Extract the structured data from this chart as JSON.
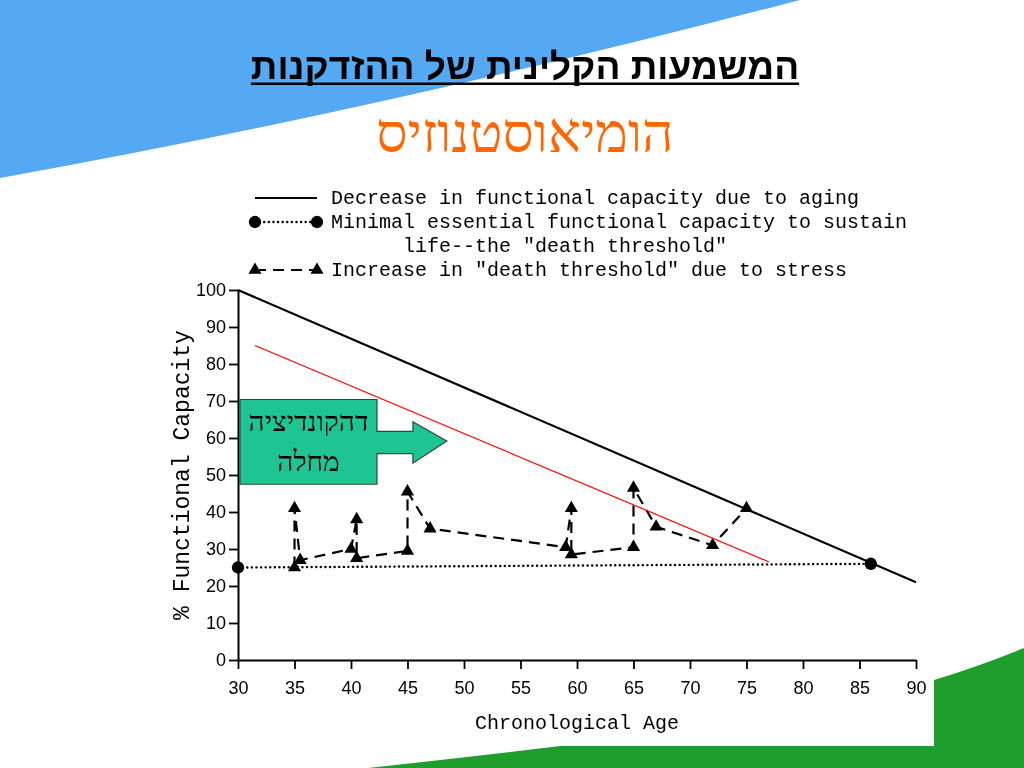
{
  "chart_data": {
    "type": "line",
    "title": "המשמעות הקלינית של ההזדקנות",
    "subtitle": "הומיאוסטנוזיס",
    "xlabel": "Chronological Age",
    "ylabel": "% Functional Capacity",
    "xlim": [
      30,
      90
    ],
    "ylim": [
      0,
      100
    ],
    "xticks": [
      30,
      35,
      40,
      45,
      50,
      55,
      60,
      65,
      70,
      75,
      80,
      85,
      90
    ],
    "yticks": [
      0,
      10,
      20,
      30,
      40,
      50,
      60,
      70,
      80,
      90,
      100
    ],
    "legend": "top",
    "annotations": [
      "דהקונדיציה\nמחלה"
    ],
    "series": [
      {
        "name": "Decrease in functional capacity due to aging",
        "color": "#000000",
        "x": [
          30,
          90
        ],
        "values": [
          100,
          21
        ],
        "line_style": "solid",
        "marker": "none"
      },
      {
        "name": "Minimal essential functional capacity to sustain life--the \"death threshold\"",
        "color": "#000000",
        "x": [
          30,
          86
        ],
        "values": [
          25,
          26
        ],
        "line_style": "dotted",
        "marker": "circle"
      },
      {
        "name": "Increase in \"death threshold\" due to stress",
        "color": "#000000",
        "x": [
          35,
          35,
          35.5,
          40,
          40.5,
          40.5,
          45,
          45,
          47,
          59,
          59.5,
          59.5,
          65,
          65,
          67,
          72,
          75
        ],
        "values": [
          25,
          41,
          27,
          30,
          38,
          27.5,
          29.5,
          45.5,
          35.5,
          30.5,
          41,
          28.5,
          30.5,
          46.5,
          36,
          31,
          41
        ],
        "line_style": "dashed",
        "marker": "triangle"
      },
      {
        "color": "#ff0000",
        "x": [
          31.5,
          77
        ],
        "values": [
          85,
          26.5
        ],
        "line_style": "solid",
        "marker": "none"
      }
    ]
  }
}
